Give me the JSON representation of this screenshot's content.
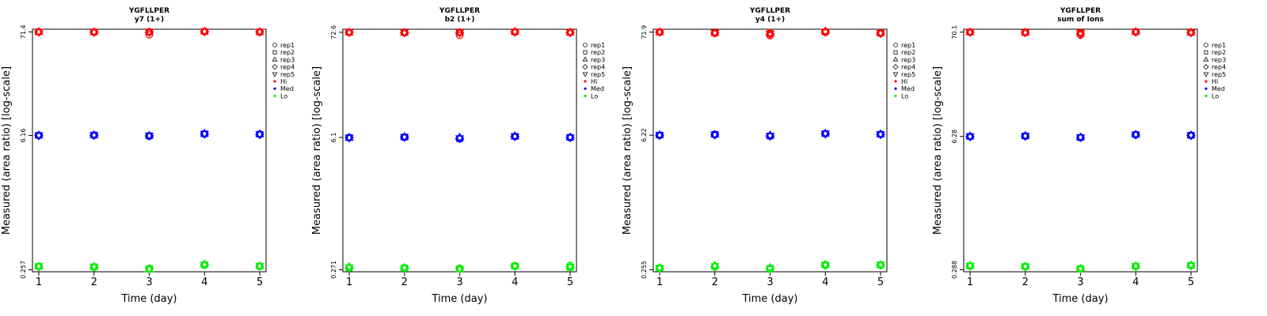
{
  "chart_data": [
    {
      "type": "scatter",
      "title": "YGFLLPER",
      "subtitle": "y7 (1+)",
      "xlabel": "Time (day)",
      "ylabel": "Measured (area ratio) [log-scale]",
      "log_y": true,
      "ylim": [
        0.245,
        76
      ],
      "yticks": [
        "0.257",
        "6.16",
        "71.4"
      ],
      "ytick_values": [
        0.257,
        6.16,
        71.4
      ],
      "x": [
        1,
        2,
        3,
        4,
        5
      ],
      "replicate_markers": [
        "rep1",
        "rep2",
        "rep3",
        "rep4",
        "rep5"
      ],
      "levels": [
        {
          "name": "Hi",
          "color": "#ff0000",
          "values": [
            71.4,
            71.0,
            70.5,
            72.0,
            71.3
          ],
          "rep_values": [
            [
              71.2,
              70.8,
              66.5,
              71.9,
              71.0
            ],
            [
              71.5,
              71.2,
              71.6,
              72.1,
              71.4
            ],
            [
              71.3,
              71.1,
              71.0,
              72.2,
              71.2
            ],
            [
              71.4,
              71.0,
              70.7,
              71.8,
              71.3
            ],
            [
              71.5,
              70.9,
              71.3,
              72.0,
              71.5
            ]
          ]
        },
        {
          "name": "Med",
          "color": "#0000ff",
          "values": [
            6.16,
            6.2,
            6.1,
            6.4,
            6.33
          ],
          "rep_values": [
            [
              6.14,
              6.18,
              6.05,
              6.38,
              6.31
            ],
            [
              6.17,
              6.22,
              6.12,
              6.41,
              6.34
            ],
            [
              6.18,
              6.21,
              6.11,
              6.42,
              6.35
            ],
            [
              6.15,
              6.19,
              6.09,
              6.39,
              6.32
            ],
            [
              6.16,
              6.2,
              6.13,
              6.4,
              6.33
            ]
          ]
        },
        {
          "name": "Lo",
          "color": "#00ee00",
          "values": [
            0.278,
            0.275,
            0.262,
            0.29,
            0.28
          ],
          "rep_values": [
            [
              0.277,
              0.274,
              0.259,
              0.291,
              0.279
            ],
            [
              0.279,
              0.276,
              0.263,
              0.288,
              0.281
            ],
            [
              0.278,
              0.275,
              0.261,
              0.292,
              0.28
            ],
            [
              0.276,
              0.273,
              0.264,
              0.289,
              0.278
            ],
            [
              0.279,
              0.276,
              0.262,
              0.29,
              0.281
            ]
          ]
        }
      ]
    },
    {
      "type": "scatter",
      "title": "YGFLLPER",
      "subtitle": "b2 (1+)",
      "xlabel": "Time (day)",
      "ylabel": "Measured (area ratio) [log-scale]",
      "log_y": true,
      "ylim": [
        0.258,
        78
      ],
      "yticks": [
        "0.271",
        "6.1",
        "72.6"
      ],
      "ytick_values": [
        0.271,
        6.1,
        72.6
      ],
      "x": [
        1,
        2,
        3,
        4,
        5
      ],
      "replicate_markers": [
        "rep1",
        "rep2",
        "rep3",
        "rep4",
        "rep5"
      ],
      "levels": [
        {
          "name": "Hi",
          "color": "#ff0000",
          "values": [
            72.5,
            72.0,
            71.5,
            73.0,
            72.3
          ],
          "rep_values": [
            [
              72.3,
              71.8,
              67.5,
              72.9,
              71.9
            ],
            [
              72.7,
              72.2,
              72.6,
              73.3,
              72.5
            ],
            [
              72.5,
              72.0,
              72.0,
              73.5,
              72.4
            ],
            [
              72.4,
              71.9,
              71.8,
              73.2,
              72.2
            ],
            [
              72.6,
              72.1,
              72.3,
              73.1,
              72.6
            ]
          ]
        },
        {
          "name": "Med",
          "color": "#0000ff",
          "values": [
            6.08,
            6.15,
            5.95,
            6.25,
            6.1
          ],
          "rep_values": [
            [
              6.06,
              6.13,
              5.9,
              6.23,
              6.08
            ],
            [
              6.09,
              6.16,
              5.93,
              6.26,
              6.11
            ],
            [
              6.05,
              6.17,
              6.1,
              6.27,
              6.14
            ],
            [
              6.08,
              6.14,
              5.96,
              6.24,
              6.09
            ],
            [
              6.07,
              6.15,
              5.98,
              6.25,
              6.1
            ]
          ]
        },
        {
          "name": "Lo",
          "color": "#00ee00",
          "values": [
            0.285,
            0.282,
            0.276,
            0.295,
            0.29
          ],
          "rep_values": [
            [
              0.283,
              0.28,
              0.275,
              0.294,
              0.3
            ],
            [
              0.281,
              0.283,
              0.277,
              0.296,
              0.285
            ],
            [
              0.29,
              0.284,
              0.276,
              0.297,
              0.289
            ],
            [
              0.284,
              0.281,
              0.278,
              0.295,
              0.288
            ],
            [
              0.286,
              0.282,
              0.275,
              0.293,
              0.29
            ]
          ]
        }
      ]
    },
    {
      "type": "scatter",
      "title": "YGFLLPER",
      "subtitle": "y4 (1+)",
      "xlabel": "Time (day)",
      "ylabel": "Measured (area ratio) [log-scale]",
      "log_y": true,
      "ylim": [
        0.243,
        77
      ],
      "yticks": [
        "0.255",
        "6.22",
        "71.9"
      ],
      "ytick_values": [
        0.255,
        6.22,
        71.9
      ],
      "x": [
        1,
        2,
        3,
        4,
        5
      ],
      "replicate_markers": [
        "rep1",
        "rep2",
        "rep3",
        "rep4",
        "rep5"
      ],
      "levels": [
        {
          "name": "Hi",
          "color": "#ff0000",
          "values": [
            71.9,
            70.5,
            69.0,
            72.0,
            70.0
          ],
          "rep_values": [
            [
              71.6,
              70.2,
              66.0,
              71.5,
              69.8
            ],
            [
              72.1,
              70.6,
              70.0,
              72.4,
              70.1
            ],
            [
              71.8,
              70.4,
              69.5,
              73.5,
              70.2
            ],
            [
              71.9,
              70.5,
              68.5,
              72.3,
              69.9
            ],
            [
              72.2,
              70.7,
              69.2,
              71.8,
              70.3
            ]
          ]
        },
        {
          "name": "Med",
          "color": "#0000ff",
          "values": [
            6.22,
            6.3,
            6.12,
            6.45,
            6.35
          ],
          "rep_values": [
            [
              6.2,
              6.28,
              6.08,
              6.43,
              6.33
            ],
            [
              6.23,
              6.35,
              6.1,
              6.47,
              6.36
            ],
            [
              6.24,
              6.31,
              6.2,
              6.48,
              6.37
            ],
            [
              6.21,
              6.29,
              6.11,
              6.44,
              6.34
            ],
            [
              6.22,
              6.3,
              6.13,
              6.46,
              6.35
            ]
          ]
        },
        {
          "name": "Lo",
          "color": "#00ee00",
          "values": [
            0.265,
            0.275,
            0.262,
            0.285,
            0.285
          ],
          "rep_values": [
            [
              0.264,
              0.273,
              0.258,
              0.284,
              0.283
            ],
            [
              0.266,
              0.276,
              0.263,
              0.286,
              0.287
            ],
            [
              0.267,
              0.282,
              0.268,
              0.287,
              0.286
            ],
            [
              0.263,
              0.274,
              0.26,
              0.283,
              0.284
            ],
            [
              0.265,
              0.277,
              0.261,
              0.285,
              0.288
            ]
          ]
        }
      ]
    },
    {
      "type": "scatter",
      "title": "YGFLLPER",
      "subtitle": "sum of Ions",
      "xlabel": "Time (day)",
      "ylabel": "Measured (area ratio) [log-scale]",
      "log_y": true,
      "ylim": [
        0.275,
        75
      ],
      "yticks": [
        "0.288",
        "6.28",
        "70.1"
      ],
      "ytick_values": [
        0.288,
        6.28,
        70.1
      ],
      "x": [
        1,
        2,
        3,
        4,
        5
      ],
      "replicate_markers": [
        "rep1",
        "rep2",
        "rep3",
        "rep4",
        "rep5"
      ],
      "levels": [
        {
          "name": "Hi",
          "color": "#ff0000",
          "values": [
            70.1,
            69.5,
            68.0,
            70.5,
            69.5
          ],
          "rep_values": [
            [
              69.9,
              69.3,
              65.5,
              70.4,
              69.3
            ],
            [
              70.3,
              69.6,
              69.2,
              70.8,
              69.7
            ],
            [
              70.0,
              69.4,
              68.5,
              70.6,
              69.5
            ],
            [
              70.1,
              69.5,
              67.8,
              70.3,
              69.4
            ],
            [
              70.2,
              69.7,
              68.2,
              70.7,
              69.6
            ]
          ]
        },
        {
          "name": "Med",
          "color": "#0000ff",
          "values": [
            6.28,
            6.35,
            6.15,
            6.55,
            6.45
          ],
          "rep_values": [
            [
              6.26,
              6.33,
              6.12,
              6.53,
              6.43
            ],
            [
              6.29,
              6.36,
              6.14,
              6.56,
              6.46
            ],
            [
              6.3,
              6.37,
              6.17,
              6.57,
              6.47
            ],
            [
              6.27,
              6.34,
              6.13,
              6.54,
              6.44
            ],
            [
              6.28,
              6.35,
              6.16,
              6.55,
              6.45
            ]
          ]
        },
        {
          "name": "Lo",
          "color": "#00ee00",
          "values": [
            0.315,
            0.31,
            0.295,
            0.312,
            0.318
          ],
          "rep_values": [
            [
              0.313,
              0.308,
              0.293,
              0.31,
              0.316
            ],
            [
              0.316,
              0.311,
              0.296,
              0.313,
              0.319
            ],
            [
              0.317,
              0.312,
              0.297,
              0.314,
              0.32
            ],
            [
              0.314,
              0.309,
              0.294,
              0.311,
              0.317
            ],
            [
              0.315,
              0.31,
              0.295,
              0.312,
              0.318
            ]
          ]
        }
      ]
    }
  ]
}
